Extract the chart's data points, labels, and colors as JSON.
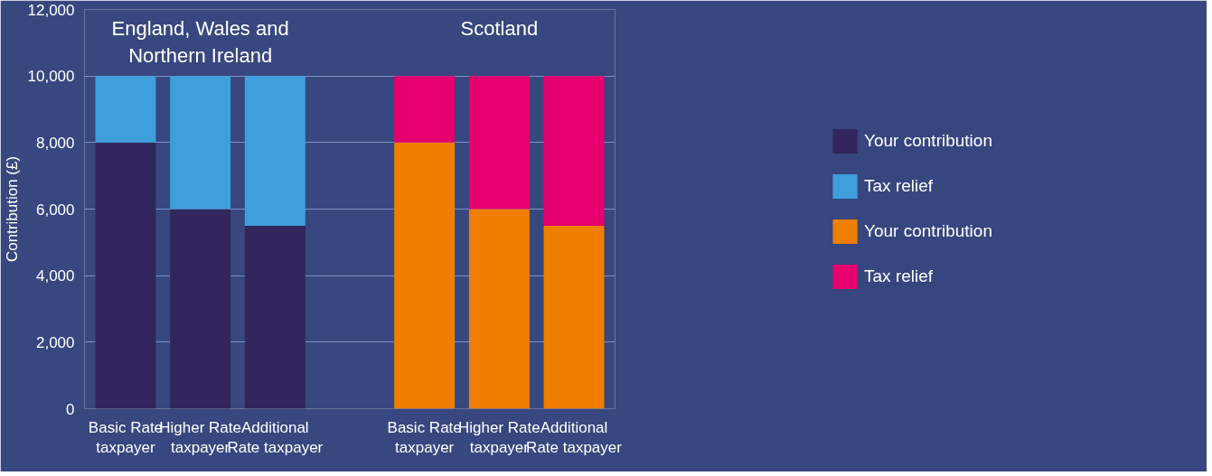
{
  "chart_data": {
    "type": "bar",
    "stacked": true,
    "categories": [
      "Basic Rate taxpayer",
      "Higher Rate taxpayer",
      "Additional Rate taxpayer",
      null,
      "Basic Rate taxpayer",
      "Higher Rate taxpayer",
      "Additional Rate taxpayer"
    ],
    "series": [
      {
        "name": "Your contribution",
        "color": "#32265c",
        "values": [
          8000,
          6000,
          5500,
          null,
          null,
          null,
          null
        ]
      },
      {
        "name": "Tax relief",
        "color": "#3f9fdc",
        "values": [
          2000,
          4000,
          4500,
          null,
          null,
          null,
          null
        ]
      },
      {
        "name": "Your contribution",
        "color": "#f07e00",
        "values": [
          null,
          null,
          null,
          null,
          8000,
          6000,
          5500
        ]
      },
      {
        "name": "Tax relief",
        "color": "#e5006e",
        "values": [
          null,
          null,
          null,
          null,
          2000,
          4000,
          4500
        ]
      }
    ],
    "ylabel": "Contribution (£)",
    "ylim": [
      0,
      12000
    ],
    "yticks": [
      {
        "value": 0,
        "label": "0"
      },
      {
        "value": 2000,
        "label": "2,000"
      },
      {
        "value": 4000,
        "label": "4,000"
      },
      {
        "value": 6000,
        "label": "6,000"
      },
      {
        "value": 8000,
        "label": "8,000"
      },
      {
        "value": 10000,
        "label": "10,000"
      },
      {
        "value": 12000,
        "label": "12,000"
      }
    ],
    "annotations": [
      "England, Wales and Northern Ireland",
      "Scotland"
    ],
    "grid": "y",
    "legend": "right"
  }
}
